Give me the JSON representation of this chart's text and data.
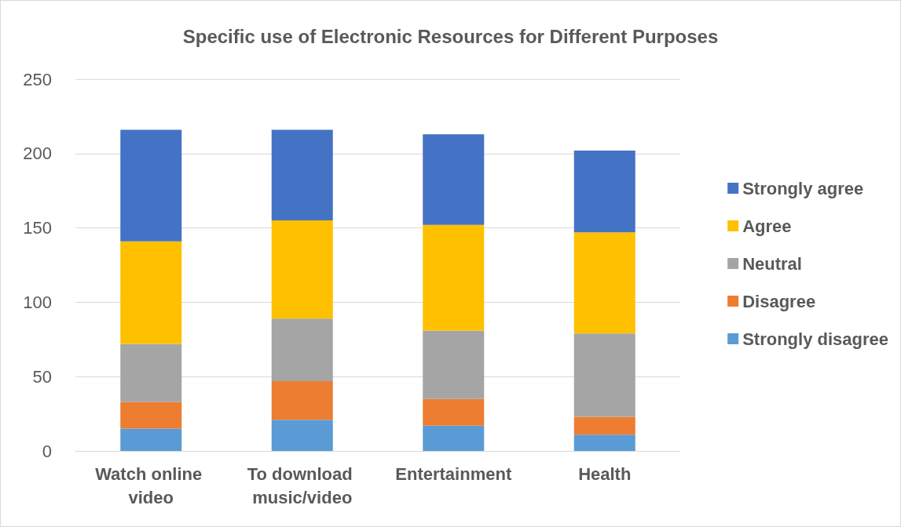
{
  "chart_data": {
    "type": "bar",
    "title": "Specific use of Electronic Resources for Different Purposes",
    "categories": [
      "Watch online video",
      "To download music/video",
      "Entertainment",
      "Health"
    ],
    "stacked": true,
    "series": [
      {
        "name": "Strongly disagree",
        "color": "#5b9bd5",
        "values": [
          15,
          21,
          17,
          11
        ]
      },
      {
        "name": "Disagree",
        "color": "#ed7d31",
        "values": [
          18,
          26,
          18,
          12
        ]
      },
      {
        "name": "Neutral",
        "color": "#a5a5a5",
        "values": [
          39,
          42,
          46,
          56
        ]
      },
      {
        "name": "Agree",
        "color": "#ffc000",
        "values": [
          69,
          66,
          71,
          68
        ]
      },
      {
        "name": "Strongly agree",
        "color": "#4472c4",
        "values": [
          75,
          61,
          61,
          55
        ]
      }
    ],
    "ylim": [
      0,
      250
    ],
    "yticks": [
      0,
      50,
      100,
      150,
      200,
      250
    ],
    "grid": "y",
    "legend": "right"
  }
}
